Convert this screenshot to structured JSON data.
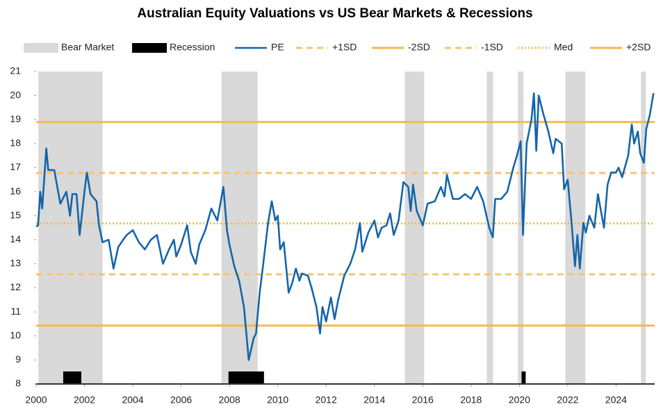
{
  "chart_data": {
    "type": "line",
    "title": "Australian Equity Valuations vs US Bear Markets & Recessions",
    "xlim": [
      2000,
      2025.6
    ],
    "xticks": [
      2000,
      2002,
      2004,
      2006,
      2008,
      2010,
      2012,
      2014,
      2016,
      2018,
      2020,
      2022,
      2024
    ],
    "ylim": [
      8,
      21
    ],
    "yticks": [
      8,
      9,
      10,
      11,
      12,
      13,
      14,
      15,
      16,
      17,
      18,
      19,
      20,
      21
    ],
    "grid": false,
    "legend": "top",
    "shading": [
      {
        "name": "Bear Market",
        "color": "#d9d9d9",
        "band": "full",
        "ranges": [
          [
            2000.09,
            2002.75
          ],
          [
            2007.67,
            2009.17
          ],
          [
            2015.26,
            2016.06
          ],
          [
            2018.65,
            2018.91
          ],
          [
            2019.94,
            2020.17
          ],
          [
            2021.9,
            2022.73
          ],
          [
            2025.03,
            2025.23
          ]
        ]
      },
      {
        "name": "Recession",
        "color": "#000000",
        "band": "bottom",
        "ranges": [
          [
            2001.12,
            2001.87
          ],
          [
            2007.96,
            2009.43
          ],
          [
            2020.09,
            2020.26
          ]
        ]
      }
    ],
    "series": [
      {
        "name": "PE",
        "color": "#1565a8",
        "x": [
          2000.0,
          2000.08,
          2000.17,
          2000.25,
          2000.42,
          2000.5,
          2000.75,
          2001.0,
          2001.25,
          2001.4,
          2001.5,
          2001.67,
          2001.8,
          2002.0,
          2002.1,
          2002.25,
          2002.5,
          2002.6,
          2002.75,
          2003.0,
          2003.2,
          2003.4,
          2003.6,
          2003.75,
          2004.0,
          2004.25,
          2004.5,
          2004.75,
          2005.0,
          2005.25,
          2005.5,
          2005.7,
          2005.8,
          2006.0,
          2006.25,
          2006.4,
          2006.6,
          2006.75,
          2007.0,
          2007.25,
          2007.5,
          2007.75,
          2007.9,
          2008.0,
          2008.2,
          2008.4,
          2008.6,
          2008.8,
          2009.0,
          2009.1,
          2009.25,
          2009.4,
          2009.6,
          2009.75,
          2009.9,
          2010.0,
          2010.1,
          2010.25,
          2010.45,
          2010.6,
          2010.75,
          2010.9,
          2011.0,
          2011.25,
          2011.4,
          2011.6,
          2011.75,
          2011.85,
          2012.0,
          2012.2,
          2012.35,
          2012.5,
          2012.75,
          2013.0,
          2013.2,
          2013.4,
          2013.5,
          2013.75,
          2014.0,
          2014.15,
          2014.3,
          2014.5,
          2014.65,
          2014.8,
          2015.0,
          2015.2,
          2015.4,
          2015.5,
          2015.6,
          2015.75,
          2016.0,
          2016.2,
          2016.5,
          2016.75,
          2016.9,
          2017.0,
          2017.25,
          2017.5,
          2017.75,
          2018.0,
          2018.25,
          2018.5,
          2018.75,
          2018.9,
          2019.0,
          2019.25,
          2019.5,
          2019.75,
          2019.9,
          2020.05,
          2020.15,
          2020.3,
          2020.5,
          2020.6,
          2020.7,
          2020.8,
          2021.0,
          2021.2,
          2021.4,
          2021.5,
          2021.75,
          2021.85,
          2022.0,
          2022.15,
          2022.3,
          2022.4,
          2022.5,
          2022.65,
          2022.75,
          2022.9,
          2023.1,
          2023.25,
          2023.5,
          2023.65,
          2023.8,
          2024.0,
          2024.1,
          2024.25,
          2024.5,
          2024.65,
          2024.75,
          2024.9,
          2025.0,
          2025.15,
          2025.25,
          2025.4,
          2025.55
        ],
        "values": [
          14.55,
          14.6,
          16.0,
          15.3,
          17.8,
          16.9,
          16.9,
          15.5,
          16.0,
          15.0,
          15.9,
          15.9,
          14.2,
          16.0,
          16.8,
          15.9,
          15.6,
          14.6,
          13.9,
          14.0,
          12.8,
          13.7,
          14.0,
          14.2,
          14.4,
          13.9,
          13.6,
          14.0,
          14.2,
          13.0,
          13.6,
          14.0,
          13.3,
          13.8,
          14.6,
          13.5,
          13.0,
          13.8,
          14.4,
          15.3,
          14.8,
          16.2,
          14.4,
          13.8,
          12.9,
          12.3,
          11.2,
          9.0,
          9.9,
          10.1,
          11.8,
          13.0,
          14.7,
          15.6,
          14.8,
          15.0,
          13.6,
          13.9,
          11.8,
          12.2,
          12.8,
          12.3,
          12.6,
          12.5,
          12.0,
          11.2,
          10.1,
          11.2,
          10.6,
          11.6,
          10.7,
          11.5,
          12.5,
          13.0,
          13.6,
          14.7,
          13.5,
          14.3,
          14.8,
          14.1,
          14.5,
          14.6,
          15.1,
          14.2,
          14.8,
          16.4,
          16.2,
          15.2,
          16.3,
          15.2,
          14.6,
          15.5,
          15.6,
          16.2,
          15.8,
          16.7,
          15.7,
          15.7,
          15.9,
          15.7,
          16.2,
          15.6,
          14.5,
          14.1,
          15.7,
          15.7,
          16.0,
          17.0,
          17.5,
          18.1,
          14.2,
          18.0,
          19.0,
          20.1,
          17.7,
          20.0,
          19.2,
          18.5,
          17.6,
          18.2,
          18.0,
          16.1,
          16.5,
          14.8,
          12.9,
          14.2,
          12.8,
          14.7,
          14.3,
          15.0,
          14.5,
          15.9,
          14.5,
          16.3,
          16.8,
          16.8,
          17.0,
          16.6,
          17.5,
          18.8,
          18.0,
          18.5,
          17.6,
          17.2,
          18.6,
          19.2,
          20.1
        ]
      }
    ],
    "hlines": [
      {
        "name": "+1SD",
        "color": "#f9c46b",
        "style": "dashed",
        "value": 16.78
      },
      {
        "name": "-2SD",
        "color": "#f5b94a",
        "style": "solid",
        "value": 10.43
      },
      {
        "name": "-1SD",
        "color": "#f9c46b",
        "style": "dashed",
        "value": 12.56
      },
      {
        "name": "Med",
        "color": "#f5b94a",
        "style": "dotted",
        "value": 14.68
      },
      {
        "name": "+2SD",
        "color": "#f5b94a",
        "style": "solid",
        "value": 18.9
      }
    ]
  }
}
